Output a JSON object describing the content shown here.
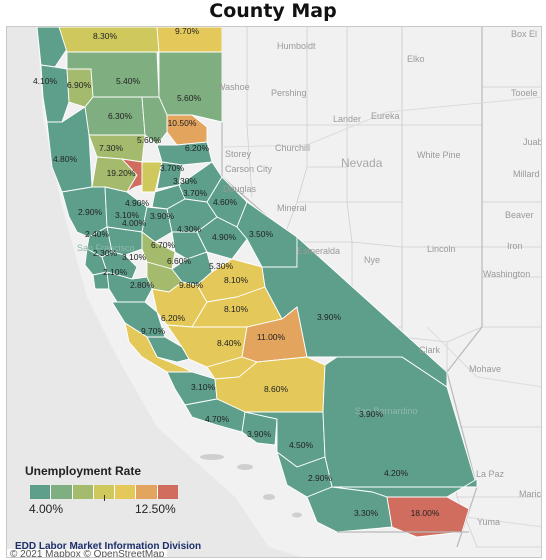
{
  "title": "County Map",
  "legend": {
    "title": "Unemployment Rate",
    "min_label": "4.00%",
    "max_label": "12.50%",
    "colors": [
      "#5e9f8c",
      "#7fae80",
      "#a4bb6d",
      "#cfc85c",
      "#e4c95a",
      "#e3a45e",
      "#d06d5e"
    ]
  },
  "credits": {
    "source": "EDD Labor Market Information Division",
    "map": "© 2021 Mapbox  © OpenStreetMap"
  },
  "states": {
    "nevada": "Nevada"
  },
  "places": [
    "Box El",
    "Humboldt",
    "Elko",
    "Washoe",
    "Pershing",
    "Tooele",
    "Lander",
    "Eureka",
    "Churchill",
    "Juab",
    "Storey",
    "Carson City",
    "White Pine",
    "Millard",
    "Douglas",
    "Mineral",
    "Beaver",
    "Esmeralda",
    "Nye",
    "Lincoln",
    "Iron",
    "Washington",
    "Clark",
    "Mohave",
    "San Bernardino",
    "La Paz",
    "Maricopa",
    "Yuma",
    "San Francisco"
  ],
  "counties": [
    {
      "rate": "8.30%"
    },
    {
      "rate": "9.70%"
    },
    {
      "rate": "4.10%"
    },
    {
      "rate": "6.90%"
    },
    {
      "rate": "5.40%"
    },
    {
      "rate": "5.60%"
    },
    {
      "rate": "6.30%"
    },
    {
      "rate": "10.50%"
    },
    {
      "rate": "5.60%"
    },
    {
      "rate": "6.20%"
    },
    {
      "rate": "4.80%"
    },
    {
      "rate": "7.30%"
    },
    {
      "rate": "19.20%"
    },
    {
      "rate": "3.70%"
    },
    {
      "rate": "3.30%"
    },
    {
      "rate": "3.70%"
    },
    {
      "rate": "4.90%"
    },
    {
      "rate": "4.60%"
    },
    {
      "rate": "2.90%"
    },
    {
      "rate": "3.10%"
    },
    {
      "rate": "3.90%"
    },
    {
      "rate": "4.30%"
    },
    {
      "rate": "4.90%"
    },
    {
      "rate": "3.50%"
    },
    {
      "rate": "2.40%"
    },
    {
      "rate": "4.00%"
    },
    {
      "rate": "6.70%"
    },
    {
      "rate": "2.30%"
    },
    {
      "rate": "3.10%"
    },
    {
      "rate": "6.60%"
    },
    {
      "rate": "5.30%"
    },
    {
      "rate": "2.10%"
    },
    {
      "rate": "9.80%"
    },
    {
      "rate": "8.10%"
    },
    {
      "rate": "2.80%"
    },
    {
      "rate": "8.10%"
    },
    {
      "rate": "6.20%"
    },
    {
      "rate": "3.90%"
    },
    {
      "rate": "9.70%"
    },
    {
      "rate": "11.00%"
    },
    {
      "rate": "8.40%"
    },
    {
      "rate": "3.10%"
    },
    {
      "rate": "8.60%"
    },
    {
      "rate": "4.70%"
    },
    {
      "rate": "3.90%"
    },
    {
      "rate": "3.90%"
    },
    {
      "rate": "4.50%"
    },
    {
      "rate": "2.90%"
    },
    {
      "rate": "4.20%"
    },
    {
      "rate": "3.30%"
    },
    {
      "rate": "18.00%"
    }
  ]
}
